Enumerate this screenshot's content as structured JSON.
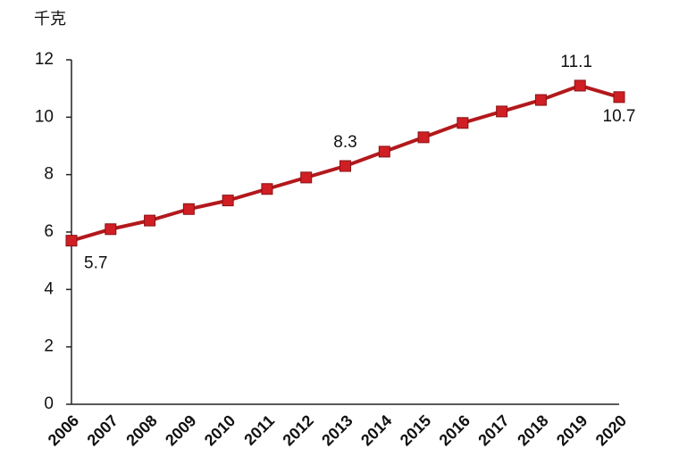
{
  "chart_data": {
    "type": "line",
    "y_unit": "千克",
    "categories": [
      "2006",
      "2007",
      "2008",
      "2009",
      "2010",
      "2011",
      "2012",
      "2013",
      "2014",
      "2015",
      "2016",
      "2017",
      "2018",
      "2019",
      "2020"
    ],
    "series": [
      {
        "color": "#b3181c",
        "values": [
          5.7,
          6.1,
          6.4,
          6.8,
          7.1,
          7.5,
          7.9,
          8.3,
          8.8,
          9.3,
          9.8,
          10.2,
          10.6,
          11.1,
          10.7
        ],
        "value_labels": [
          "5.7",
          null,
          null,
          null,
          null,
          null,
          null,
          "8.3",
          null,
          null,
          null,
          null,
          null,
          "11.1",
          "10.7"
        ]
      }
    ],
    "ylim": [
      0,
      12
    ],
    "yticks": [
      0,
      2,
      4,
      6,
      8,
      10,
      12
    ],
    "grid": false
  }
}
